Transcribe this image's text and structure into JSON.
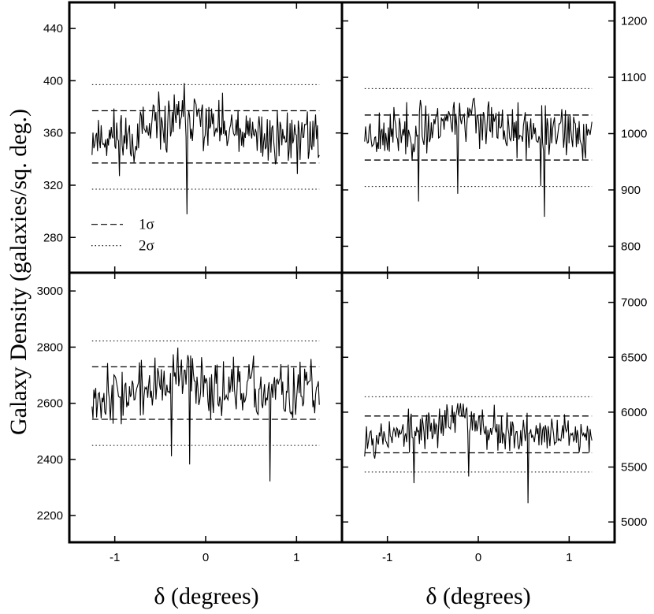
{
  "chart_data": {
    "type": "line",
    "ylabel": "Galaxy Density (galaxies/sq. deg.)",
    "xlabel": "δ (degrees)",
    "legend": [
      {
        "label": "1σ",
        "style": "dashed"
      },
      {
        "label": "2σ",
        "style": "dotted"
      }
    ],
    "legend_position": "lower-left of top-left panel",
    "panels": [
      {
        "position": "top-left",
        "yaxis_side": "left",
        "ylim": [
          253,
          460
        ],
        "yticks": [
          280,
          320,
          360,
          400,
          440
        ],
        "xlim": [
          -1.5,
          1.5
        ],
        "xticks": [
          -1,
          0,
          1
        ],
        "xtick_labels": [
          "-1",
          "0",
          "1"
        ],
        "mean": 357,
        "sigma1": [
          337,
          377
        ],
        "sigma2": [
          317,
          397
        ],
        "show_legend": true,
        "seed": 11,
        "trend": 0.7
      },
      {
        "position": "top-right",
        "yaxis_side": "right",
        "ylim": [
          753,
          1233
        ],
        "yticks": [
          800,
          900,
          1000,
          1100,
          1200
        ],
        "xlim": [
          -1.5,
          1.5
        ],
        "xticks": [
          -1,
          0,
          1
        ],
        "xtick_labels": [
          "-1",
          "0",
          "1"
        ],
        "mean": 1000,
        "sigma1": [
          953,
          1033
        ],
        "sigma2": [
          906,
          1080
        ],
        "show_legend": false,
        "seed": 23,
        "trend": 0.8
      },
      {
        "position": "bottom-left",
        "yaxis_side": "left",
        "ylim": [
          2105,
          3065
        ],
        "yticks": [
          2200,
          2400,
          2600,
          2800,
          3000
        ],
        "xlim": [
          -1.5,
          1.5
        ],
        "xticks": [
          -1,
          0,
          1
        ],
        "xtick_labels": [
          "-1",
          "0",
          "1"
        ],
        "mean": 2636,
        "sigma1": [
          2543,
          2730
        ],
        "sigma2": [
          2450,
          2822
        ],
        "show_legend": false,
        "seed": 37,
        "trend": 0.6
      },
      {
        "position": "bottom-right",
        "yaxis_side": "right",
        "ylim": [
          4815,
          7270
        ],
        "yticks": [
          5000,
          5500,
          6000,
          6500,
          7000
        ],
        "xlim": [
          -1.5,
          1.5
        ],
        "xticks": [
          -1,
          0,
          1
        ],
        "xtick_labels": [
          "-1",
          "0",
          "1"
        ],
        "mean": 5790,
        "sigma1": [
          5630,
          5965
        ],
        "sigma2": [
          5455,
          6140
        ],
        "show_legend": false,
        "seed": 53,
        "trend": 1.0
      }
    ],
    "series_x_range": [
      -1.25,
      1.25
    ],
    "series_points": 250
  }
}
